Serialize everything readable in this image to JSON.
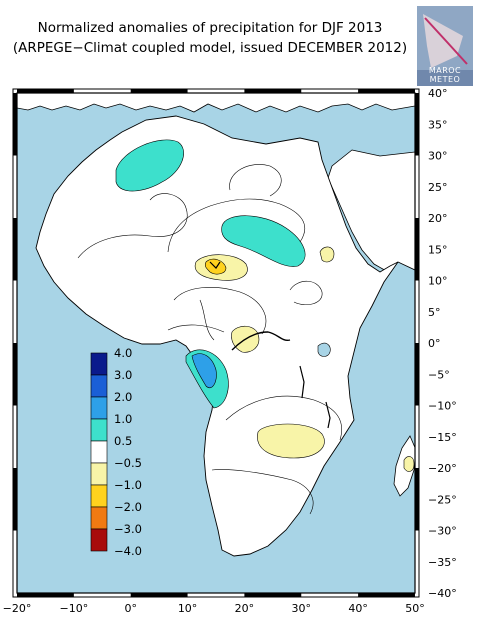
{
  "header": {
    "title_line1": "Normalized anomalies of precipitation for DJF 2013",
    "title_line2": "(ARPEGE−Climat coupled model, issued DECEMBER 2012)"
  },
  "logo": {
    "text": "MAROC METEO",
    "colors": {
      "bg": "#8fa7c4",
      "shape": "#d9d1d9",
      "accent": "#c0306a"
    }
  },
  "map": {
    "lon_range": [
      -20,
      50
    ],
    "lat_range": [
      -40,
      40
    ],
    "x_ticks": [
      {
        "value": -20,
        "label": "−20°"
      },
      {
        "value": -10,
        "label": "−10°"
      },
      {
        "value": 0,
        "label": "0°"
      },
      {
        "value": 10,
        "label": "10°"
      },
      {
        "value": 20,
        "label": "20°"
      },
      {
        "value": 30,
        "label": "30°"
      },
      {
        "value": 40,
        "label": "40°"
      },
      {
        "value": 50,
        "label": "50°"
      }
    ],
    "y_ticks": [
      {
        "value": 40,
        "label": "40°"
      },
      {
        "value": 35,
        "label": "35°"
      },
      {
        "value": 30,
        "label": "30°"
      },
      {
        "value": 25,
        "label": "25°"
      },
      {
        "value": 20,
        "label": "20°"
      },
      {
        "value": 15,
        "label": "15°"
      },
      {
        "value": 10,
        "label": "10°"
      },
      {
        "value": 5,
        "label": "5°"
      },
      {
        "value": 0,
        "label": "0°"
      },
      {
        "value": -5,
        "label": "−5°"
      },
      {
        "value": -10,
        "label": "−10°"
      },
      {
        "value": -15,
        "label": "−15°"
      },
      {
        "value": -20,
        "label": "−20°"
      },
      {
        "value": -25,
        "label": "−25°"
      },
      {
        "value": -30,
        "label": "−30°"
      },
      {
        "value": -35,
        "label": "−35°"
      },
      {
        "value": -40,
        "label": "−40°"
      }
    ],
    "colors": {
      "ocean": "#a8d4e6",
      "land": "#ffffff"
    }
  },
  "legend": {
    "labels": [
      "4.0",
      "3.0",
      "2.0",
      "1.0",
      "0.5",
      "−0.5",
      "−1.0",
      "−2.0",
      "−3.0",
      "−4.0"
    ],
    "colors": [
      "#0a1a8c",
      "#1a5fd6",
      "#2ea0e8",
      "#3de0cc",
      "#ffffff",
      "#f8f4a8",
      "#ffd21e",
      "#f07a12",
      "#a80c0c"
    ]
  }
}
